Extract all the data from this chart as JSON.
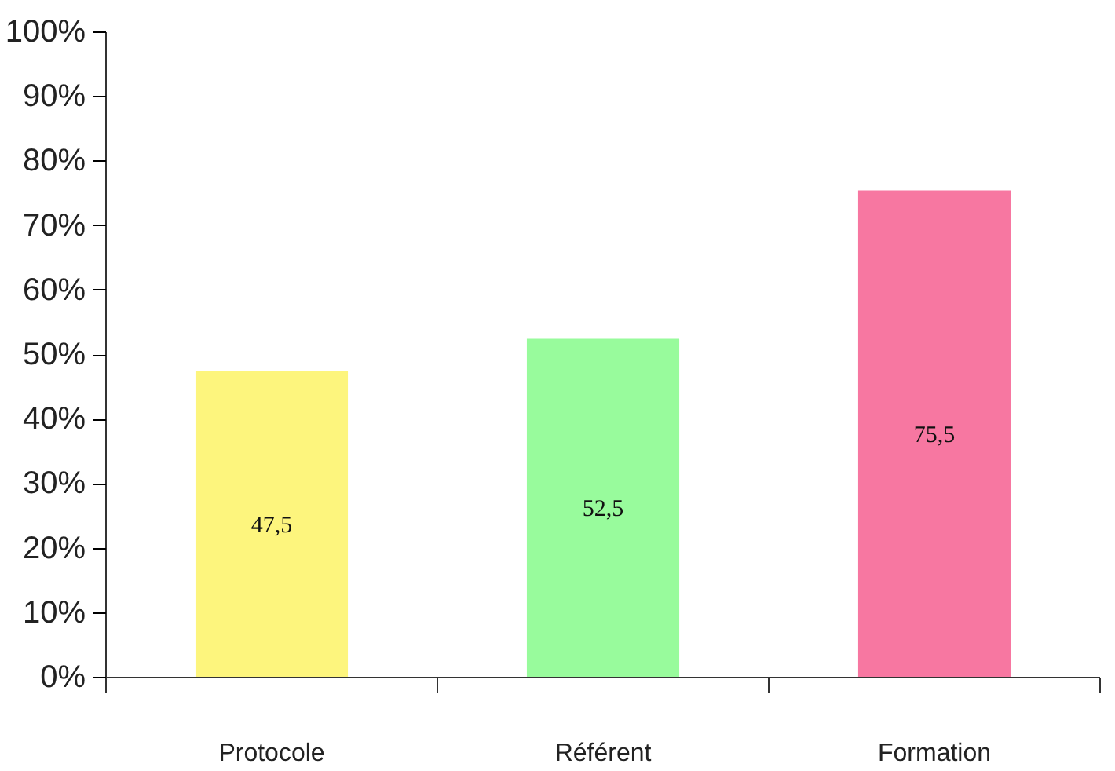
{
  "chart_data": {
    "type": "bar",
    "categories": [
      "Protocole",
      "Référent",
      "Formation"
    ],
    "values": [
      47.5,
      52.5,
      75.5
    ],
    "colors": [
      "#fdf57d",
      "#98fb9c",
      "#f777a1"
    ],
    "value_labels": [
      "47,5",
      "52,5",
      "75,5"
    ],
    "ylim": [
      0,
      100
    ],
    "yticks": [
      {
        "value": 0,
        "label": "0%"
      },
      {
        "value": 10,
        "label": "10%"
      },
      {
        "value": 20,
        "label": "20%"
      },
      {
        "value": 30,
        "label": "30%"
      },
      {
        "value": 40,
        "label": "40%"
      },
      {
        "value": 50,
        "label": "50%"
      },
      {
        "value": 60,
        "label": "60%"
      },
      {
        "value": 70,
        "label": "70%"
      },
      {
        "value": 80,
        "label": "80%"
      },
      {
        "value": 90,
        "label": "90%"
      },
      {
        "value": 100,
        "label": "100%"
      }
    ],
    "grid": false
  }
}
